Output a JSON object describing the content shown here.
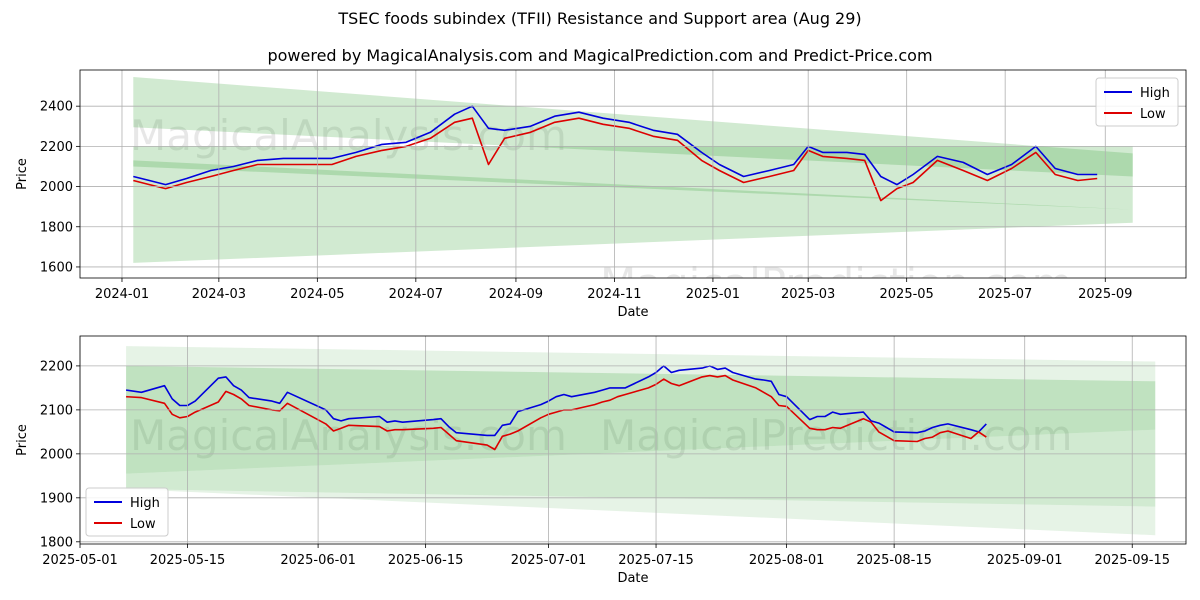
{
  "title": "TSEC foods subindex (TFII) Resistance and Support area (Aug 29)",
  "subtitle": "powered by MagicalAnalysis.com and MagicalPrediction.com and Predict-Price.com",
  "watermarks": [
    "MagicalAnalysis.com",
    "MagicalPrediction.com"
  ],
  "colors": {
    "high": "#0000dd",
    "low": "#dd0000",
    "band": "#2e9e2e"
  },
  "chart_data": [
    {
      "type": "line",
      "xlabel": "Date",
      "ylabel": "Price",
      "x_ticks": [
        "2024-01",
        "2024-03",
        "2024-05",
        "2024-07",
        "2024-09",
        "2024-11",
        "2025-01",
        "2025-03",
        "2025-05",
        "2025-07",
        "2025-09"
      ],
      "y_ticks": [
        1600,
        1800,
        2000,
        2200,
        2400
      ],
      "xlim": [
        "2023-12-06",
        "2025-10-21"
      ],
      "ylim": [
        1545,
        2580
      ],
      "grid": true,
      "legend": "top-right",
      "bands": [
        {
          "x": [
            "2024-01-08",
            "2025-09-18"
          ],
          "upper": [
            2545,
            2165
          ],
          "lower": [
            2295,
            2050
          ]
        },
        {
          "x": [
            "2024-01-08",
            "2025-09-18"
          ],
          "upper": [
            2200,
            2200
          ],
          "lower": [
            1620,
            1820
          ]
        },
        {
          "x": [
            "2024-01-08",
            "2025-09-18"
          ],
          "upper": [
            2130,
            1885
          ],
          "lower": [
            2100,
            1885
          ]
        }
      ],
      "series": [
        {
          "name": "High",
          "x": [
            "2024-01-08",
            "2024-01-18",
            "2024-01-28",
            "2024-02-10",
            "2024-02-25",
            "2024-03-10",
            "2024-03-25",
            "2024-04-10",
            "2024-04-25",
            "2024-05-10",
            "2024-05-25",
            "2024-06-10",
            "2024-06-25",
            "2024-07-10",
            "2024-07-25",
            "2024-08-05",
            "2024-08-15",
            "2024-08-25",
            "2024-09-10",
            "2024-09-25",
            "2024-10-10",
            "2024-10-25",
            "2024-11-10",
            "2024-11-25",
            "2024-12-10",
            "2024-12-25",
            "2025-01-05",
            "2025-01-20",
            "2025-02-05",
            "2025-02-20",
            "2025-03-01",
            "2025-03-10",
            "2025-03-25",
            "2025-04-05",
            "2025-04-15",
            "2025-04-25",
            "2025-05-05",
            "2025-05-20",
            "2025-06-05",
            "2025-06-20",
            "2025-07-05",
            "2025-07-20",
            "2025-08-01",
            "2025-08-15",
            "2025-08-27"
          ],
          "values": [
            2050,
            2030,
            2010,
            2040,
            2080,
            2100,
            2130,
            2140,
            2140,
            2140,
            2170,
            2210,
            2220,
            2270,
            2360,
            2400,
            2290,
            2280,
            2300,
            2350,
            2370,
            2340,
            2320,
            2280,
            2260,
            2170,
            2110,
            2050,
            2080,
            2110,
            2200,
            2170,
            2170,
            2160,
            2050,
            2010,
            2060,
            2150,
            2120,
            2060,
            2110,
            2200,
            2090,
            2060,
            2060
          ]
        },
        {
          "name": "Low",
          "x": [
            "2024-01-08",
            "2024-01-18",
            "2024-01-28",
            "2024-02-10",
            "2024-02-25",
            "2024-03-10",
            "2024-03-25",
            "2024-04-10",
            "2024-04-25",
            "2024-05-10",
            "2024-05-25",
            "2024-06-10",
            "2024-06-25",
            "2024-07-10",
            "2024-07-25",
            "2024-08-05",
            "2024-08-15",
            "2024-08-25",
            "2024-09-10",
            "2024-09-25",
            "2024-10-10",
            "2024-10-25",
            "2024-11-10",
            "2024-11-25",
            "2024-12-10",
            "2024-12-25",
            "2025-01-05",
            "2025-01-20",
            "2025-02-05",
            "2025-02-20",
            "2025-03-01",
            "2025-03-10",
            "2025-03-25",
            "2025-04-05",
            "2025-04-15",
            "2025-04-25",
            "2025-05-05",
            "2025-05-20",
            "2025-06-05",
            "2025-06-20",
            "2025-07-05",
            "2025-07-20",
            "2025-08-01",
            "2025-08-15",
            "2025-08-27"
          ],
          "values": [
            2030,
            2010,
            1990,
            2020,
            2050,
            2080,
            2110,
            2110,
            2110,
            2110,
            2150,
            2180,
            2200,
            2240,
            2320,
            2340,
            2110,
            2240,
            2270,
            2320,
            2340,
            2310,
            2290,
            2250,
            2230,
            2130,
            2080,
            2020,
            2050,
            2080,
            2180,
            2150,
            2140,
            2130,
            1930,
            1990,
            2020,
            2130,
            2080,
            2030,
            2090,
            2170,
            2060,
            2030,
            2040
          ]
        }
      ]
    },
    {
      "type": "line",
      "xlabel": "Date",
      "ylabel": "Price",
      "x_ticks": [
        "2025-05-01",
        "2025-05-15",
        "2025-06-01",
        "2025-06-15",
        "2025-07-01",
        "2025-07-15",
        "2025-08-01",
        "2025-08-15",
        "2025-09-01",
        "2025-09-15"
      ],
      "y_ticks": [
        1800,
        1900,
        2000,
        2100,
        2200
      ],
      "xlim": [
        "2025-05-01",
        "2025-09-22"
      ],
      "ylim": [
        1795,
        2268
      ],
      "grid": true,
      "legend": "bottom-left",
      "bands": [
        {
          "x": [
            "2025-05-07",
            "2025-09-18"
          ],
          "upper": [
            2245,
            2210
          ],
          "lower": [
            2200,
            2165
          ]
        },
        {
          "x": [
            "2025-05-07",
            "2025-09-18"
          ],
          "upper": [
            2200,
            2165
          ],
          "lower": [
            1955,
            2055
          ]
        },
        {
          "x": [
            "2025-05-07",
            "2025-09-18"
          ],
          "upper": [
            1955,
            2055
          ],
          "lower": [
            1920,
            1880
          ]
        },
        {
          "x": [
            "2025-05-07",
            "2025-09-18"
          ],
          "upper": [
            1920,
            1880
          ],
          "lower": [
            1920,
            1815
          ]
        }
      ],
      "series": [
        {
          "name": "High",
          "x": [
            "2025-05-07",
            "2025-05-09",
            "2025-05-12",
            "2025-05-13",
            "2025-05-14",
            "2025-05-15",
            "2025-05-16",
            "2025-05-19",
            "2025-05-20",
            "2025-05-21",
            "2025-05-22",
            "2025-05-23",
            "2025-05-26",
            "2025-05-27",
            "2025-05-28",
            "2025-06-02",
            "2025-06-03",
            "2025-06-04",
            "2025-06-05",
            "2025-06-09",
            "2025-06-10",
            "2025-06-11",
            "2025-06-12",
            "2025-06-16",
            "2025-06-17",
            "2025-06-18",
            "2025-06-19",
            "2025-06-23",
            "2025-06-24",
            "2025-06-25",
            "2025-06-26",
            "2025-06-27",
            "2025-06-30",
            "2025-07-01",
            "2025-07-02",
            "2025-07-03",
            "2025-07-04",
            "2025-07-07",
            "2025-07-08",
            "2025-07-09",
            "2025-07-10",
            "2025-07-11",
            "2025-07-14",
            "2025-07-15",
            "2025-07-16",
            "2025-07-17",
            "2025-07-18",
            "2025-07-21",
            "2025-07-22",
            "2025-07-23",
            "2025-07-24",
            "2025-07-25",
            "2025-07-28",
            "2025-07-29",
            "2025-07-30",
            "2025-07-31",
            "2025-08-01",
            "2025-08-04",
            "2025-08-05",
            "2025-08-06",
            "2025-08-07",
            "2025-08-08",
            "2025-08-11",
            "2025-08-12",
            "2025-08-13",
            "2025-08-14",
            "2025-08-15",
            "2025-08-18",
            "2025-08-19",
            "2025-08-20",
            "2025-08-21",
            "2025-08-22",
            "2025-08-25",
            "2025-08-26",
            "2025-08-27"
          ],
          "values": [
            2145,
            2140,
            2155,
            2125,
            2110,
            2110,
            2120,
            2172,
            2175,
            2155,
            2145,
            2128,
            2120,
            2115,
            2140,
            2100,
            2080,
            2075,
            2080,
            2085,
            2072,
            2075,
            2072,
            2078,
            2080,
            2062,
            2048,
            2042,
            2042,
            2065,
            2068,
            2096,
            2112,
            2120,
            2130,
            2135,
            2130,
            2140,
            2145,
            2150,
            2150,
            2150,
            2175,
            2185,
            2200,
            2185,
            2190,
            2195,
            2200,
            2192,
            2195,
            2185,
            2170,
            2168,
            2165,
            2135,
            2130,
            2078,
            2085,
            2085,
            2095,
            2090,
            2095,
            2075,
            2070,
            2060,
            2050,
            2048,
            2052,
            2060,
            2065,
            2068,
            2055,
            2050,
            2068
          ]
        },
        {
          "name": "Low",
          "x": [
            "2025-05-07",
            "2025-05-09",
            "2025-05-12",
            "2025-05-13",
            "2025-05-14",
            "2025-05-15",
            "2025-05-16",
            "2025-05-19",
            "2025-05-20",
            "2025-05-21",
            "2025-05-22",
            "2025-05-23",
            "2025-05-26",
            "2025-05-27",
            "2025-05-28",
            "2025-06-02",
            "2025-06-03",
            "2025-06-04",
            "2025-06-05",
            "2025-06-09",
            "2025-06-10",
            "2025-06-11",
            "2025-06-12",
            "2025-06-16",
            "2025-06-17",
            "2025-06-18",
            "2025-06-19",
            "2025-06-23",
            "2025-06-24",
            "2025-06-25",
            "2025-06-26",
            "2025-06-27",
            "2025-06-30",
            "2025-07-01",
            "2025-07-02",
            "2025-07-03",
            "2025-07-04",
            "2025-07-07",
            "2025-07-08",
            "2025-07-09",
            "2025-07-10",
            "2025-07-11",
            "2025-07-14",
            "2025-07-15",
            "2025-07-16",
            "2025-07-17",
            "2025-07-18",
            "2025-07-21",
            "2025-07-22",
            "2025-07-23",
            "2025-07-24",
            "2025-07-25",
            "2025-07-28",
            "2025-07-29",
            "2025-07-30",
            "2025-07-31",
            "2025-08-01",
            "2025-08-04",
            "2025-08-05",
            "2025-08-06",
            "2025-08-07",
            "2025-08-08",
            "2025-08-11",
            "2025-08-12",
            "2025-08-13",
            "2025-08-14",
            "2025-08-15",
            "2025-08-18",
            "2025-08-19",
            "2025-08-20",
            "2025-08-21",
            "2025-08-22",
            "2025-08-25",
            "2025-08-26",
            "2025-08-27"
          ],
          "values": [
            2130,
            2128,
            2115,
            2090,
            2082,
            2085,
            2095,
            2118,
            2142,
            2135,
            2125,
            2110,
            2100,
            2098,
            2115,
            2068,
            2052,
            2058,
            2065,
            2062,
            2052,
            2055,
            2055,
            2058,
            2060,
            2045,
            2030,
            2020,
            2010,
            2040,
            2045,
            2052,
            2082,
            2090,
            2095,
            2100,
            2100,
            2112,
            2118,
            2122,
            2130,
            2135,
            2150,
            2158,
            2170,
            2160,
            2155,
            2175,
            2178,
            2175,
            2178,
            2168,
            2150,
            2140,
            2130,
            2110,
            2108,
            2058,
            2055,
            2055,
            2060,
            2058,
            2080,
            2072,
            2050,
            2040,
            2030,
            2028,
            2035,
            2038,
            2048,
            2052,
            2035,
            2050,
            2038
          ]
        }
      ]
    }
  ]
}
